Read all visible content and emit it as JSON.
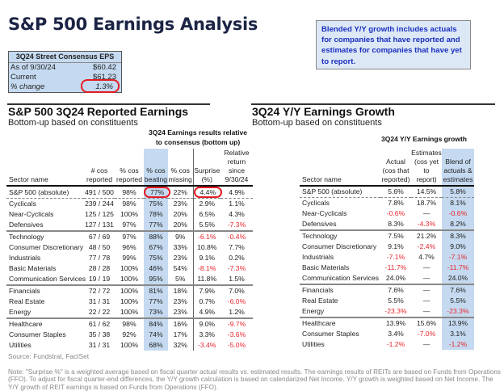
{
  "title": "S&P 500 Earnings Analysis",
  "eps_box": {
    "header": "3Q24 Street Consensus EPS",
    "rows": [
      {
        "label": "As of 9/30/24",
        "value": "$60.42"
      },
      {
        "label": "Current",
        "value": "$61.23"
      },
      {
        "label": "% change",
        "value": "1.3%"
      }
    ]
  },
  "note_box": "Blended Y/Y growth includes actuals for companies that have reported and estimates for companies that have yet to report.",
  "left": {
    "title": "S&P 500 3Q24 Reported Earnings",
    "subtitle": "Bottom-up based on constituents",
    "group_header": [
      "3Q24 Earnings results relative",
      "to consensus (bottom up)"
    ],
    "columns": [
      [
        "Sector name"
      ],
      [
        "# cos",
        "reported"
      ],
      [
        "% cos",
        "reported"
      ],
      [
        "% cos",
        "beating"
      ],
      [
        "% cos",
        "missing"
      ],
      [
        "Surprise",
        "(%)"
      ],
      [
        "Relative",
        "return since",
        "9/30/24"
      ]
    ],
    "rows": [
      [
        "S&P 500 (absolute)",
        "491 / 500",
        "98%",
        "77%",
        "22%",
        "4.4%",
        "4.9%"
      ],
      [
        "Cyclicals",
        "239 / 244",
        "98%",
        "75%",
        "23%",
        "2.9%",
        "1.1%"
      ],
      [
        "Near-Cyclicals",
        "125 / 125",
        "100%",
        "78%",
        "20%",
        "6.5%",
        "4.3%"
      ],
      [
        "Defensives",
        "127 / 131",
        "97%",
        "77%",
        "20%",
        "5.5%",
        "-7.3%"
      ],
      [
        "Technology",
        "67 / 69",
        "97%",
        "88%",
        "9%",
        "-6.1%",
        "-0.4%"
      ],
      [
        "Consumer Discretionary",
        "48 / 50",
        "96%",
        "67%",
        "33%",
        "10.8%",
        "7.7%"
      ],
      [
        "Industrials",
        "77 / 78",
        "99%",
        "75%",
        "23%",
        "9.1%",
        "0.2%"
      ],
      [
        "Basic Materials",
        "28 / 28",
        "100%",
        "46%",
        "54%",
        "-8.1%",
        "-7.3%"
      ],
      [
        "Communication Services",
        "19 / 19",
        "100%",
        "95%",
        "5%",
        "11.8%",
        "1.5%"
      ],
      [
        "Financials",
        "72 / 72",
        "100%",
        "81%",
        "18%",
        "7.9%",
        "7.0%"
      ],
      [
        "Real Estate",
        "31 / 31",
        "100%",
        "77%",
        "23%",
        "0.7%",
        "-6.0%"
      ],
      [
        "Energy",
        "22 / 22",
        "100%",
        "73%",
        "23%",
        "4.9%",
        "1.2%"
      ],
      [
        "Healthcare",
        "61 / 62",
        "98%",
        "84%",
        "16%",
        "9.0%",
        "-9.7%"
      ],
      [
        "Consumer Staples",
        "35 / 38",
        "92%",
        "74%",
        "17%",
        "3.3%",
        "-3.6%"
      ],
      [
        "Utilities",
        "31 / 31",
        "100%",
        "68%",
        "32%",
        "-3.4%",
        "-5.0%"
      ]
    ]
  },
  "right": {
    "title": "3Q24 Y/Y Earnings Growth",
    "subtitle": "Bottom-up based on constituents",
    "group_header": [
      "3Q24 Y/Y Earnings growth"
    ],
    "columns": [
      [
        "Sector name"
      ],
      [
        "Actual",
        "(cos that",
        "reported)"
      ],
      [
        "Estimates",
        "(cos yet to",
        "report)"
      ],
      [
        "Blend of",
        "actuals &",
        "estimates"
      ]
    ],
    "rows": [
      [
        "S&P 500 (absolute)",
        "5.6%",
        "14.5%",
        "5.8%"
      ],
      [
        "Cyclicals",
        "7.8%",
        "18.7%",
        "8.1%"
      ],
      [
        "Near-Cyclicals",
        "-0.6%",
        "—",
        "-0.6%"
      ],
      [
        "Defensives",
        "8.3%",
        "-4.3%",
        "8.2%"
      ],
      [
        "Technology",
        "7.5%",
        "21.2%",
        "8.3%"
      ],
      [
        "Consumer Discretionary",
        "9.1%",
        "-2.4%",
        "9.0%"
      ],
      [
        "Industrials",
        "-7.1%",
        "4.7%",
        "-7.1%"
      ],
      [
        "Basic Materials",
        "-11.7%",
        "—",
        "-11.7%"
      ],
      [
        "Communication Services",
        "24.0%",
        "—",
        "24.0%"
      ],
      [
        "Financials",
        "7.6%",
        "—",
        "7.6%"
      ],
      [
        "Real Estate",
        "5.5%",
        "—",
        "5.5%"
      ],
      [
        "Energy",
        "-23.3%",
        "—",
        "-23.3%"
      ],
      [
        "Healthcare",
        "13.9%",
        "15.6%",
        "13.9%"
      ],
      [
        "Consumer Staples",
        "3.4%",
        "-7.0%",
        "3.1%"
      ],
      [
        "Utilities",
        "-1.2%",
        "—",
        "-1.2%"
      ]
    ]
  },
  "source": "Source: Fundstrat, FactSet",
  "footnote": "Note: \"Surprise %\" is a weighted average based on fiscal quarter actual results vs. estimated results. The earnings results of REITs are based on Funds from Operations (FFO). To adjust for fiscal quarter-end differences, the Y/Y growth calculation is based on calendarized Net Income. Y/Y growth is weighted based on Net Income. The Y/Y growth of REIT earnings is based on Funds from Operations (FFO).",
  "colors": {
    "title": "#1b2444",
    "highlight": "#c5daf0",
    "negative": "#e8262d",
    "note_text": "#1a2fbf",
    "circle": "#e31b23"
  }
}
